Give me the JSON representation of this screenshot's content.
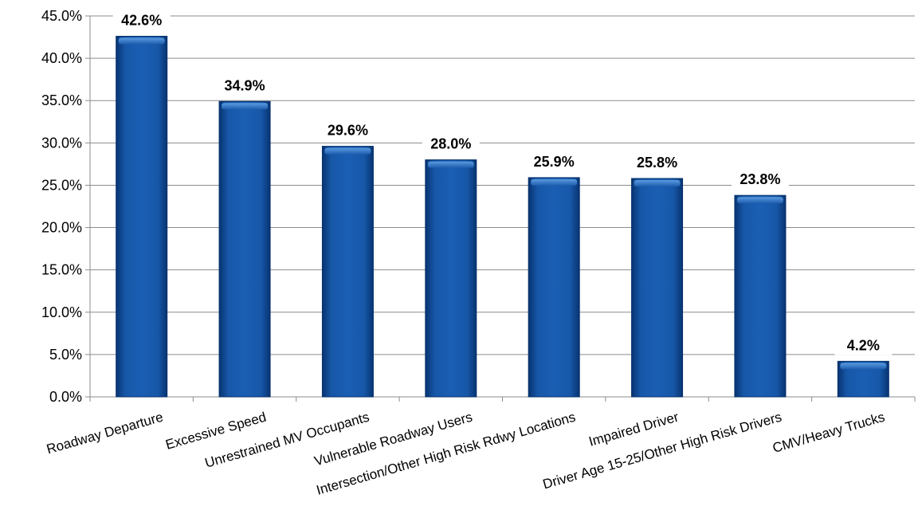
{
  "chart_data": {
    "type": "bar",
    "title": "",
    "xlabel": "",
    "ylabel": "",
    "categories": [
      "Roadway Departure",
      "Excessive Speed",
      "Unrestrained MV Occupants",
      "Vulnerable Roadway Users",
      "Intersection/Other High Risk Rdwy Locations",
      "Impaired Driver",
      "Driver Age 15-25/Other High Risk Drivers",
      "CMV/Heavy Trucks"
    ],
    "values": [
      42.6,
      34.9,
      29.6,
      28.0,
      25.9,
      25.8,
      23.8,
      4.2
    ],
    "data_labels": [
      "42.6%",
      "34.9%",
      "29.6%",
      "28.0%",
      "25.9%",
      "25.8%",
      "23.8%",
      "4.2%"
    ],
    "ylim": [
      0,
      45
    ],
    "yticks": [
      "0.0%",
      "5.0%",
      "10.0%",
      "15.0%",
      "20.0%",
      "25.0%",
      "30.0%",
      "35.0%",
      "40.0%",
      "45.0%"
    ],
    "grid": true,
    "legend": "none",
    "bar_color": "#0F4FA0",
    "bar_highlight_color": "#3F86D6",
    "bar_edge_color": "#06306B"
  }
}
